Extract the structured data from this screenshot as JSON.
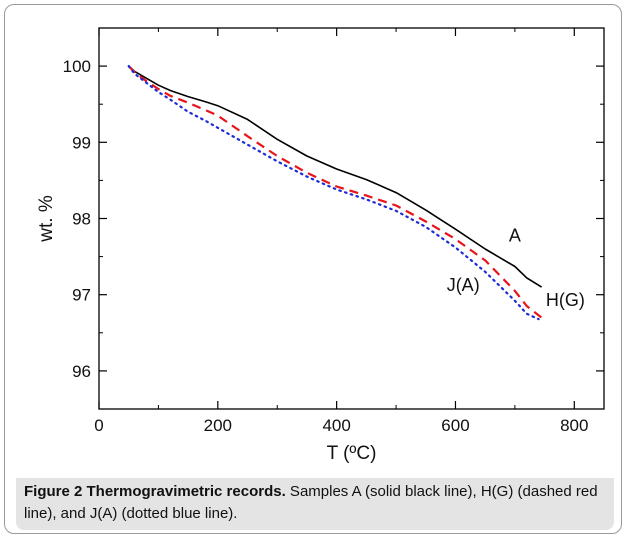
{
  "chart_data": {
    "type": "line",
    "xlabel": "T (ºC)",
    "ylabel": "wt. %",
    "xlim": [
      0,
      850
    ],
    "ylim": [
      95.5,
      100.5
    ],
    "xticks": [
      0,
      200,
      400,
      600,
      800
    ],
    "yticks": [
      96,
      97,
      98,
      99,
      100
    ],
    "grid": false,
    "series": [
      {
        "name": "A",
        "style": "solid",
        "color": "#000000",
        "x": [
          50,
          60,
          80,
          100,
          120,
          150,
          180,
          200,
          250,
          300,
          350,
          400,
          450,
          500,
          550,
          600,
          650,
          700,
          720,
          745
        ],
        "y": [
          100.0,
          99.93,
          99.84,
          99.75,
          99.68,
          99.6,
          99.53,
          99.48,
          99.3,
          99.04,
          98.82,
          98.65,
          98.51,
          98.34,
          98.11,
          97.86,
          97.6,
          97.37,
          97.22,
          97.1
        ]
      },
      {
        "name": "H(G)",
        "style": "dashed",
        "color": "#e8141a",
        "x": [
          50,
          60,
          80,
          100,
          120,
          150,
          180,
          200,
          250,
          300,
          350,
          400,
          450,
          500,
          550,
          600,
          650,
          700,
          720,
          745
        ],
        "y": [
          100.0,
          99.92,
          99.8,
          99.7,
          99.61,
          99.52,
          99.42,
          99.35,
          99.08,
          98.82,
          98.6,
          98.42,
          98.3,
          98.17,
          97.96,
          97.73,
          97.45,
          97.05,
          96.85,
          96.7
        ]
      },
      {
        "name": "J(A)",
        "style": "dotted",
        "color": "#1f2bd8",
        "x": [
          50,
          60,
          80,
          100,
          120,
          150,
          180,
          200,
          250,
          300,
          350,
          400,
          450,
          500,
          550,
          600,
          650,
          700,
          720,
          740
        ],
        "y": [
          100.0,
          99.9,
          99.78,
          99.66,
          99.56,
          99.4,
          99.28,
          99.19,
          98.97,
          98.75,
          98.55,
          98.38,
          98.25,
          98.1,
          97.89,
          97.62,
          97.3,
          96.92,
          96.75,
          96.68
        ]
      }
    ],
    "annotations": [
      {
        "text": "A",
        "x": 700,
        "y": 97.7
      },
      {
        "text": "J(A)",
        "x": 613,
        "y": 97.05
      },
      {
        "text": "H(G)",
        "x": 785,
        "y": 96.85
      }
    ]
  },
  "caption": {
    "label": "Figure 2 Thermogravimetric records.",
    "text": " Samples A (solid black line), H(G) (dashed red line), and J(A) (dotted blue line)."
  }
}
